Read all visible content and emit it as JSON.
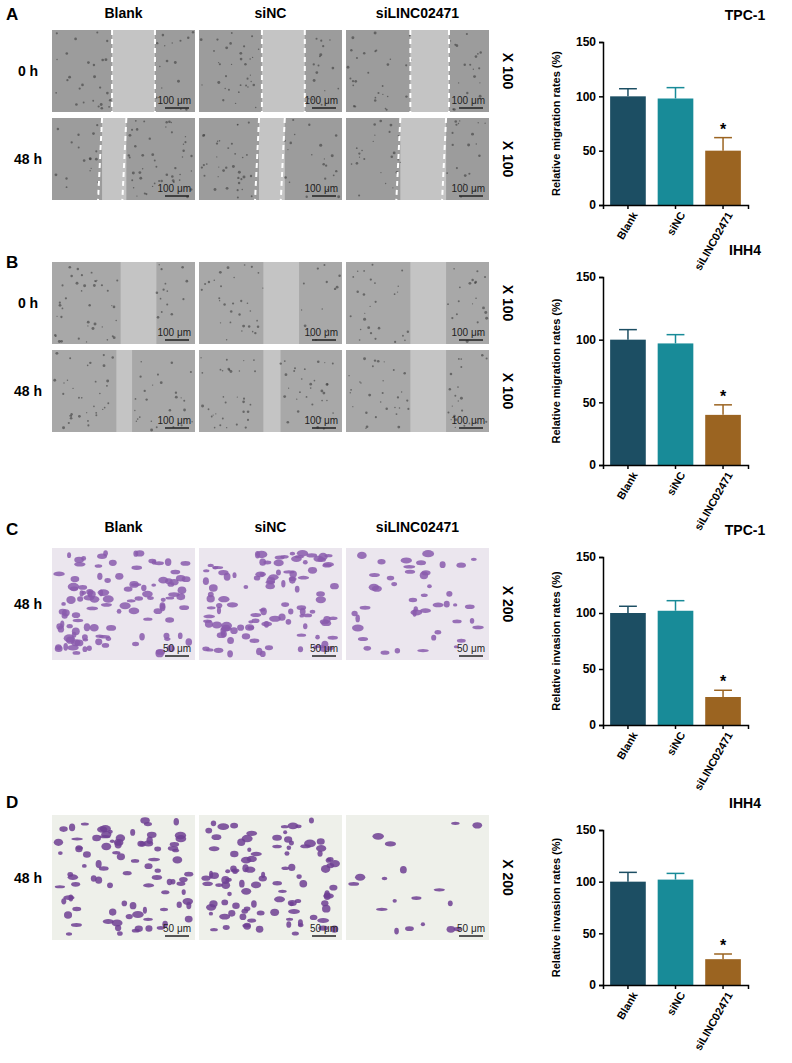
{
  "chart_data": [
    {
      "type": "bar",
      "title": "TPC-1",
      "ylabel": "Relative migration rates (%)",
      "categories": [
        "Blank",
        "siNC",
        "siLINC02471"
      ],
      "values": [
        100,
        98,
        50
      ],
      "errors": [
        7,
        10,
        12
      ],
      "colors": [
        "#1c4e63",
        "#188b98",
        "#9b6421"
      ],
      "ylim": [
        0,
        150
      ],
      "yticks": [
        0,
        50,
        100,
        150
      ],
      "annotations": [
        {
          "category": "siLINC02471",
          "text": "*"
        }
      ]
    },
    {
      "type": "bar",
      "title": "IHH4",
      "ylabel": "Relative migration rates (%)",
      "categories": [
        "Blank",
        "siNC",
        "siLINC02471"
      ],
      "values": [
        100,
        97,
        40
      ],
      "errors": [
        8,
        7,
        8
      ],
      "colors": [
        "#1c4e63",
        "#188b98",
        "#9b6421"
      ],
      "ylim": [
        0,
        150
      ],
      "yticks": [
        0,
        50,
        100,
        150
      ],
      "annotations": [
        {
          "category": "siLINC02471",
          "text": "*"
        }
      ]
    },
    {
      "type": "bar",
      "title": "TPC-1",
      "ylabel": "Relative invasion rates (%)",
      "categories": [
        "Blank",
        "siNC",
        "siLINC02471"
      ],
      "values": [
        100,
        102,
        25
      ],
      "errors": [
        6,
        9,
        6
      ],
      "colors": [
        "#1c4e63",
        "#188b98",
        "#9b6421"
      ],
      "ylim": [
        0,
        150
      ],
      "yticks": [
        0,
        50,
        100,
        150
      ],
      "annotations": [
        {
          "category": "siLINC02471",
          "text": "*"
        }
      ]
    },
    {
      "type": "bar",
      "title": "IHH4",
      "ylabel": "Relative invasion rates (%)",
      "categories": [
        "Blank",
        "siNC",
        "siLINC02471"
      ],
      "values": [
        100,
        102,
        25
      ],
      "errors": [
        9,
        6,
        5
      ],
      "colors": [
        "#1c4e63",
        "#188b98",
        "#9b6421"
      ],
      "ylim": [
        0,
        150
      ],
      "yticks": [
        0,
        50,
        100,
        150
      ],
      "annotations": [
        {
          "category": "siLINC02471",
          "text": "*"
        }
      ]
    }
  ],
  "panels": [
    {
      "letter": "A",
      "type": "scratch",
      "columns": [
        "Blank",
        "siNC",
        "siLINC02471"
      ],
      "rows": [
        "0 h",
        "48 h"
      ],
      "magnification": "X 100",
      "scale_bar": "100 μm"
    },
    {
      "letter": "B",
      "type": "scratch",
      "rows": [
        "0 h",
        "48 h"
      ],
      "magnification": "X 100",
      "scale_bar": "100 μm"
    },
    {
      "letter": "C",
      "type": "transwell",
      "columns": [
        "Blank",
        "siNC",
        "siLINC02471"
      ],
      "rows": [
        "48 h"
      ],
      "magnification": "X 200",
      "scale_bar": "50 μm"
    },
    {
      "letter": "D",
      "type": "transwell",
      "rows": [
        "48 h"
      ],
      "magnification": "X 200",
      "scale_bar": "50 μm"
    }
  ]
}
